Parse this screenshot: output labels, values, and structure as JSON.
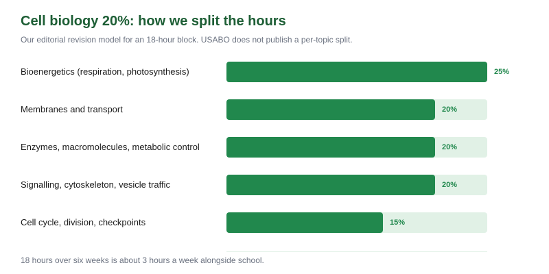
{
  "header": {
    "title": "Cell biology 20%: how we split the hours",
    "subtitle": "Our editorial revision model for an 18-hour block. USABO does not publish a per-topic split."
  },
  "footer": {
    "note": "18 hours over six weeks is about 3 hours a week alongside school."
  },
  "colors": {
    "title": "#1d5e35",
    "bar_fill": "#21884d",
    "bar_track": "#e1f1e6",
    "value_text": "#21884d",
    "muted_text": "#6b7280",
    "baseline": "#e1f1e6"
  },
  "chart_data": {
    "type": "bar",
    "orientation": "horizontal",
    "title": "Cell biology 20%: how we split the hours",
    "subtitle": "Our editorial revision model for an 18-hour block. USABO does not publish a per-topic split.",
    "xlim": [
      0,
      25
    ],
    "grid": false,
    "categories": [
      "Bioenergetics (respiration, photosynthesis)",
      "Membranes and transport",
      "Enzymes, macromolecules, metabolic control",
      "Signalling, cytoskeleton, vesicle traffic",
      "Cell cycle, division, checkpoints"
    ],
    "values": [
      25,
      20,
      20,
      20,
      15
    ],
    "value_labels": [
      "25%",
      "20%",
      "20%",
      "20%",
      "15%"
    ]
  }
}
